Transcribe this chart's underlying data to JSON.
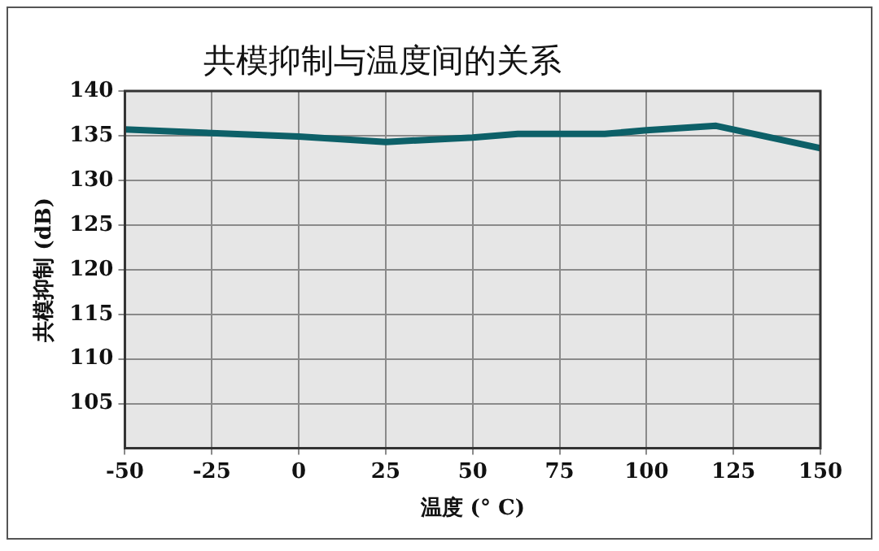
{
  "chart_data": {
    "type": "line",
    "title": "共模抑制与温度间的关系",
    "xlabel": "温度 (° C)",
    "ylabel": "共模抑制 (dB)",
    "x": [
      -50,
      -25,
      0,
      25,
      50,
      63,
      88,
      100,
      120,
      150
    ],
    "series": [
      {
        "color": "#0d6068",
        "values": [
          135.7,
          135.3,
          134.9,
          134.3,
          134.8,
          135.2,
          135.2,
          135.6,
          136.1,
          133.6
        ]
      }
    ],
    "xlim": [
      -50,
      150
    ],
    "xticks": [
      -50,
      -25,
      0,
      25,
      50,
      75,
      100,
      125,
      150
    ],
    "ylim": [
      100,
      140
    ],
    "yticks": [
      105,
      110,
      115,
      120,
      125,
      130,
      135,
      140
    ],
    "grid": true,
    "legend": false,
    "marker": "none",
    "line_style": "solid"
  }
}
